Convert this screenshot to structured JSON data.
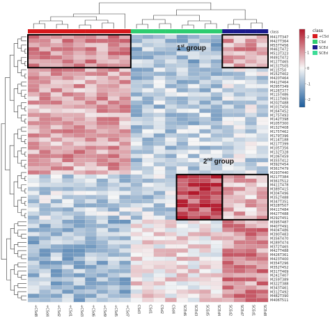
{
  "chart_data": {
    "type": "heatmap",
    "class_legend_title": "class",
    "classes": [
      {
        "name": "+CSd",
        "color": "#d7191c"
      },
      {
        "name": "CSd",
        "color": "#2ecc71"
      },
      {
        "name": "SCEd",
        "color": "#1a1a8c"
      },
      {
        "name": "SCEd",
        "color": "#3ddc97"
      }
    ],
    "colorbar": {
      "ticks": [
        2,
        1,
        0,
        -1,
        -2
      ],
      "low_color": "#1c5c9c",
      "mid_color": "#f7f7f7",
      "high_color": "#b2182b"
    },
    "columns": [
      {
        "label": "+CSd8",
        "class_index": 0
      },
      {
        "label": "+CSd4",
        "class_index": 0
      },
      {
        "label": "+CSd2",
        "class_index": 0
      },
      {
        "label": "+CSd1",
        "class_index": 0
      },
      {
        "label": "+CSd3",
        "class_index": 0
      },
      {
        "label": "+CSd6",
        "class_index": 0
      },
      {
        "label": "+CSd9",
        "class_index": 0
      },
      {
        "label": "+CSd5",
        "class_index": 0
      },
      {
        "label": "+CSd7",
        "class_index": 0
      },
      {
        "label": "CSd3",
        "class_index": 1
      },
      {
        "label": "CSd1",
        "class_index": 1
      },
      {
        "label": "CSd2",
        "class_index": 1
      },
      {
        "label": "CSd4",
        "class_index": 1
      },
      {
        "label": "SCEd6",
        "class_index": 1
      },
      {
        "label": "SCEd3",
        "class_index": 1
      },
      {
        "label": "SCEd5",
        "class_index": 1
      },
      {
        "label": "SCEd4",
        "class_index": 1
      },
      {
        "label": "SCEd2",
        "class_index": 2
      },
      {
        "label": "SCEd7",
        "class_index": 2
      },
      {
        "label": "SCEd1",
        "class_index": 2
      },
      {
        "label": "SCEd8",
        "class_index": 2
      }
    ],
    "rows": [
      "M417T347",
      "M427T364",
      "M537T456",
      "M461T472",
      "M513T323",
      "M491T472",
      "M127T465",
      "M131T505",
      "M115T50",
      "M152T402",
      "M420T464",
      "M412T464",
      "M295T349",
      "M126T377",
      "M115T486",
      "M111T465",
      "M202T488",
      "M101T456",
      "M164T452",
      "M175T493",
      "M142T398",
      "M105T300",
      "M132T408",
      "M175T462",
      "M179T396",
      "M114T188",
      "M217T399",
      "M105T356",
      "M132T328",
      "M106T459",
      "M355T412",
      "M392T454",
      "M361T479",
      "M293T440",
      "M217T384",
      "M361T512",
      "M411T478",
      "M389T415",
      "M304T496",
      "M352T488",
      "M347T351",
      "M328T507",
      "M411T484",
      "M427T488",
      "M292T451",
      "M395T487",
      "M407T491",
      "M404T486",
      "M390T483",
      "M356T470",
      "M289T474",
      "M372T465",
      "M427T488",
      "M426T361",
      "M423T400",
      "M354T296",
      "M352T452",
      "M317T469",
      "M241T407",
      "M259T389",
      "M322T388",
      "M343T461",
      "M312T492",
      "M482T390",
      "M406T511"
    ],
    "annotations": [
      {
        "text": "1",
        "superscript": "st",
        "suffix": " group"
      },
      {
        "text": "2",
        "superscript": "nd",
        "suffix": " group"
      }
    ]
  }
}
